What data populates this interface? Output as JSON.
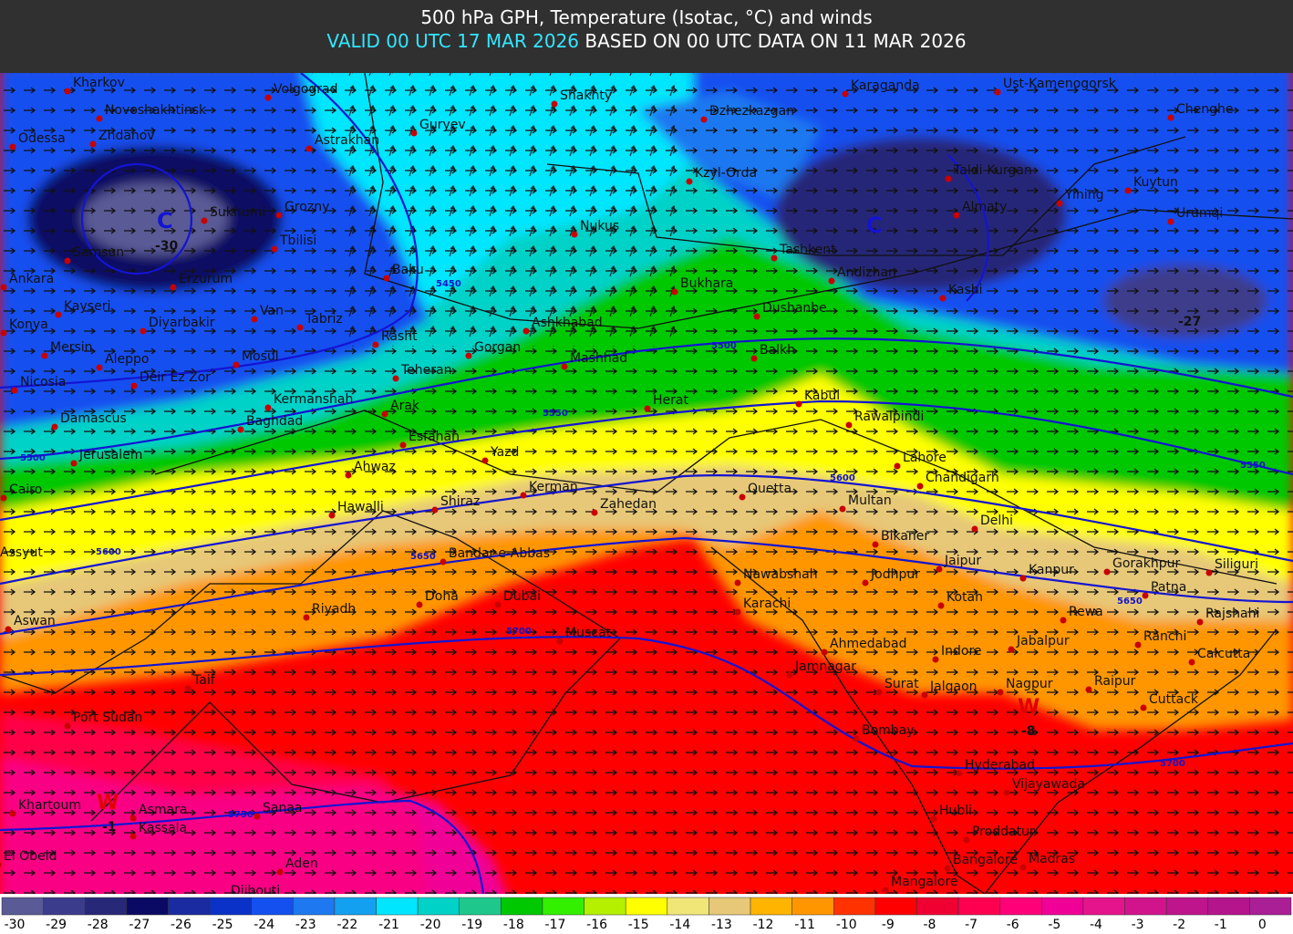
{
  "header": {
    "title": "500 hPa GPH, Temperature (Isotac, °C) and winds",
    "valid": "VALID 00 UTC 17 MAR 2026",
    "based": "BASED ON 00 UTC DATA ON 11 MAR 2026"
  },
  "cities": [
    "Kharkov",
    "Novoshakhtinsk",
    "Volgograd",
    "Shakhty",
    "Karaganda",
    "Ust-Kamenogorsk",
    "Chenghe",
    "Odessa",
    "Zhdanov",
    "Guryev",
    "Astrakhan",
    "Dzhezkazgan",
    "Kzyl-Orda",
    "Taldi-Kurgan",
    "Kuytun",
    "Yining",
    "Urumqi",
    "Sukhumi",
    "Grozny",
    "Nukus",
    "Almaty",
    "Samsun",
    "Tbilisi",
    "Tashkent",
    "Andizhan",
    "Kashi",
    "Erzurum",
    "Ankara",
    "Baku",
    "Bukhara",
    "Kayseri",
    "Dushanbe",
    "Van",
    "Tabriz",
    "Diyarbakir",
    "Konya",
    "Ashkhabad",
    "Rasht",
    "Mersin",
    "Gorgan",
    "Mosul",
    "Aleppo",
    "Mashhad",
    "Balkh",
    "Teheran",
    "Deir Ez Zor",
    "Nicosia",
    "Herat",
    "Kabul",
    "Kermanshah",
    "Arak",
    "Damascus",
    "Baghdad",
    "Rawalpindi",
    "Esfahan",
    "Jerusalem",
    "Yazd",
    "Lahore",
    "Ahwaz",
    "Chandigarh",
    "Kerman",
    "Quetta",
    "Cairo",
    "Multan",
    "Hawalli",
    "Shiraz",
    "Zahedan",
    "Delhi",
    "Bikaner",
    "Assyut",
    "Bandar-e-Abbas",
    "Jaipur",
    "Kanpur",
    "Gorakhpur",
    "Siliguri",
    "Nawabshah",
    "Jodhpur",
    "Patna",
    "Dubai",
    "Doha",
    "Kotah",
    "Karachi",
    "Riyadh",
    "Rewa",
    "Rajshahi",
    "Aswan",
    "Muscat",
    "Ranchi",
    "Ahmedabad",
    "Jabalpur",
    "Indore",
    "Calcutta",
    "Jamnagar",
    "Taif",
    "Surat",
    "Jalgaon",
    "Nagpur",
    "Raipur",
    "Cuttack",
    "Port Sudan",
    "Bombay",
    "Hyderabad",
    "Vijayawada",
    "Khartoum",
    "Asmara",
    "Sanaa",
    "Hubli",
    "Kassala",
    "Proddatur",
    "El Obeid",
    "Bangalore",
    "Madras",
    "Aden",
    "Mangalore",
    "Djibouti"
  ],
  "contour_labels": [
    "5450",
    "5500",
    "5550",
    "5500",
    "5600",
    "5650",
    "5600",
    "5550",
    "5650",
    "5700",
    "5750",
    "5700"
  ],
  "centers": [
    "C",
    "-30",
    "C",
    "-27",
    "W",
    "-1",
    "W",
    "-8"
  ],
  "colorbar": {
    "values": [
      -30,
      -29,
      -28,
      -27,
      -26,
      -25,
      -24,
      -23,
      -22,
      -21,
      -20,
      -19,
      -18,
      -17,
      -16,
      -15,
      -14,
      -13,
      -12,
      -11,
      -10,
      -9,
      -8,
      -7,
      -6,
      -5,
      -4,
      -3,
      -2,
      -1,
      0
    ],
    "colors": [
      "#5a5a96",
      "#3c3c8c",
      "#282878",
      "#0a0a64",
      "#1a2aa0",
      "#0a32c8",
      "#1450f0",
      "#1e78f0",
      "#14a0f0",
      "#00e6ff",
      "#00d2c8",
      "#1ec88c",
      "#00c800",
      "#32f000",
      "#b4f000",
      "#ffff00",
      "#f0e678",
      "#e6c878",
      "#ffb400",
      "#ff9600",
      "#ff3200",
      "#ff0000",
      "#f00032",
      "#ff0050",
      "#ff0078",
      "#f00096",
      "#e6148c",
      "#d2148c",
      "#be148c",
      "#b4148c",
      "#aa1e96"
    ]
  }
}
